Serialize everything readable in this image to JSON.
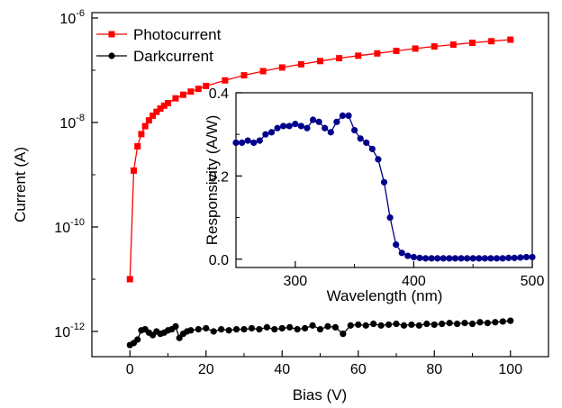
{
  "chart_data": [
    {
      "type": "line",
      "scale_y": "log",
      "xlabel": "Bias (V)",
      "ylabel": "Current (A)",
      "xlim": [
        -10,
        110
      ],
      "ylim": [
        1e-12,
        1e-06
      ],
      "x_ticks": [
        0,
        20,
        40,
        60,
        80,
        100
      ],
      "x_tick_labels": [
        "0",
        "20",
        "40",
        "60",
        "80",
        "100"
      ],
      "y_ticks": [
        1e-12,
        1e-10,
        1e-08,
        1e-06
      ],
      "y_tick_labels": [
        {
          "base": "10",
          "exp": "-12"
        },
        {
          "base": "10",
          "exp": "-10"
        },
        {
          "base": "10",
          "exp": "-8"
        },
        {
          "base": "10",
          "exp": "-6"
        }
      ],
      "grid": false,
      "legend": "top-left",
      "series": [
        {
          "name": "Photocurrent",
          "color": "#ff0000",
          "marker": "square",
          "x": [
            0,
            1,
            2,
            3,
            4,
            5,
            6,
            7,
            8,
            9,
            10,
            12,
            14,
            16,
            18,
            20,
            25,
            30,
            35,
            40,
            45,
            50,
            55,
            60,
            65,
            70,
            75,
            80,
            85,
            90,
            95,
            100
          ],
          "y": [
            1e-11,
            1.2e-09,
            3.5e-09,
            6e-09,
            8.5e-09,
            1.1e-08,
            1.35e-08,
            1.6e-08,
            1.85e-08,
            2.1e-08,
            2.35e-08,
            2.9e-08,
            3.4e-08,
            3.9e-08,
            4.4e-08,
            5e-08,
            6.4e-08,
            8e-08,
            9.6e-08,
            1.13e-07,
            1.3e-07,
            1.5e-07,
            1.7e-07,
            1.9e-07,
            2.1e-07,
            2.35e-07,
            2.6e-07,
            2.85e-07,
            3.1e-07,
            3.35e-07,
            3.6e-07,
            3.85e-07
          ]
        },
        {
          "name": "Darkcurrent",
          "color": "#000000",
          "marker": "circle",
          "x": [
            0,
            1,
            2,
            3,
            4,
            5,
            6,
            7,
            8,
            9,
            10,
            11,
            12,
            13,
            14,
            15,
            16,
            18,
            20,
            22,
            24,
            26,
            28,
            30,
            32,
            34,
            36,
            38,
            40,
            42,
            44,
            46,
            48,
            50,
            52,
            54,
            56,
            58,
            60,
            62,
            64,
            66,
            68,
            70,
            72,
            74,
            76,
            78,
            80,
            82,
            84,
            86,
            88,
            90,
            92,
            94,
            96,
            98,
            100
          ],
          "y": [
            5.5e-13,
            6e-13,
            7e-13,
            1.05e-12,
            1.1e-12,
            9.5e-13,
            8.5e-13,
            1e-12,
            9e-13,
            9.5e-13,
            1.05e-12,
            1.1e-12,
            1.25e-12,
            7.5e-13,
            9e-13,
            1e-12,
            1.05e-12,
            1.1e-12,
            1.15e-12,
            1e-12,
            1.1e-12,
            1.05e-12,
            1.1e-12,
            1.1e-12,
            1.15e-12,
            1.1e-12,
            1.2e-12,
            1.1e-12,
            1.15e-12,
            1.2e-12,
            1.1e-12,
            1.15e-12,
            1.3e-12,
            1.1e-12,
            1.25e-12,
            1.2e-12,
            9e-13,
            1.3e-12,
            1.35e-12,
            1.3e-12,
            1.4e-12,
            1.3e-12,
            1.35e-12,
            1.4e-12,
            1.3e-12,
            1.35e-12,
            1.3e-12,
            1.4e-12,
            1.35e-12,
            1.4e-12,
            1.45e-12,
            1.4e-12,
            1.45e-12,
            1.4e-12,
            1.5e-12,
            1.45e-12,
            1.5e-12,
            1.55e-12,
            1.6e-12
          ]
        }
      ]
    },
    {
      "type": "line",
      "role": "inset",
      "xlabel": "Wavelength (nm)",
      "ylabel": "Responsivity (A/W)",
      "xlim": [
        250,
        500
      ],
      "ylim": [
        -0.02,
        0.4
      ],
      "x_ticks": [
        300,
        400,
        500
      ],
      "x_tick_labels": [
        "300",
        "400",
        "500"
      ],
      "y_ticks": [
        0.0,
        0.2,
        0.4
      ],
      "y_tick_labels": [
        "0.0",
        "0.2",
        "0.4"
      ],
      "grid": false,
      "series": [
        {
          "color": "#00008b",
          "marker": "circle",
          "x": [
            250,
            255,
            260,
            265,
            270,
            275,
            280,
            285,
            290,
            295,
            300,
            305,
            310,
            315,
            320,
            325,
            330,
            335,
            340,
            345,
            350,
            355,
            360,
            365,
            370,
            375,
            380,
            385,
            390,
            395,
            400,
            405,
            410,
            415,
            420,
            425,
            430,
            435,
            440,
            445,
            450,
            455,
            460,
            465,
            470,
            475,
            480,
            485,
            490,
            495,
            500
          ],
          "y": [
            0.28,
            0.28,
            0.285,
            0.28,
            0.285,
            0.3,
            0.305,
            0.315,
            0.32,
            0.32,
            0.325,
            0.32,
            0.315,
            0.335,
            0.33,
            0.315,
            0.305,
            0.33,
            0.345,
            0.345,
            0.31,
            0.29,
            0.28,
            0.265,
            0.24,
            0.185,
            0.1,
            0.035,
            0.015,
            0.008,
            0.005,
            0.003,
            0.002,
            0.002,
            0.002,
            0.002,
            0.002,
            0.002,
            0.002,
            0.002,
            0.002,
            0.002,
            0.002,
            0.002,
            0.002,
            0.002,
            0.003,
            0.003,
            0.004,
            0.005,
            0.005
          ]
        }
      ]
    }
  ]
}
